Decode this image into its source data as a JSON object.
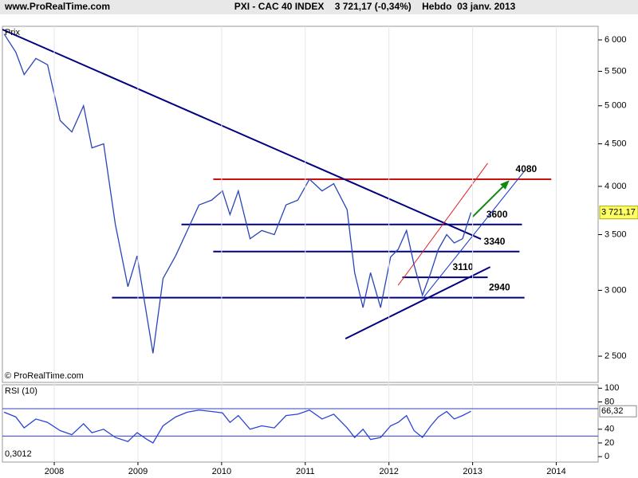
{
  "header": {
    "site": "www.ProRealTime.com",
    "title": "PXI - CAC 40 INDEX    3 721,17 (-0,34%)    Hebdo  03 janv. 2013"
  },
  "chart_data": [
    {
      "type": "line",
      "y_label": "Prix",
      "credit": "© ProRealTime.com",
      "log_scale": true,
      "xlim": [
        2007.38,
        2014.5
      ],
      "ylim": [
        2325,
        6230
      ],
      "yticks": [
        {
          "value": 2500,
          "label": "2 500"
        },
        {
          "value": 3000,
          "label": "3 000"
        },
        {
          "value": 3500,
          "label": "3 500"
        },
        {
          "value": 4000,
          "label": "4 000"
        },
        {
          "value": 4500,
          "label": "4 500"
        },
        {
          "value": 5000,
          "label": "5 000"
        },
        {
          "value": 5500,
          "label": "5 500"
        },
        {
          "value": 6000,
          "label": "6 000"
        }
      ],
      "x": [
        2007.4,
        2007.54,
        2007.64,
        2007.78,
        2007.92,
        2008.07,
        2008.21,
        2008.35,
        2008.45,
        2008.59,
        2008.73,
        2008.88,
        2008.99,
        2009.11,
        2009.18,
        2009.3,
        2009.45,
        2009.59,
        2009.73,
        2009.88,
        2010.01,
        2010.1,
        2010.2,
        2010.34,
        2010.48,
        2010.63,
        2010.77,
        2010.91,
        2011.05,
        2011.2,
        2011.34,
        2011.5,
        2011.59,
        2011.69,
        2011.78,
        2011.9,
        2012.02,
        2012.11,
        2012.21,
        2012.3,
        2012.4,
        2012.5,
        2012.59,
        2012.69,
        2012.78,
        2012.88,
        2012.98
      ],
      "values": [
        6100,
        5800,
        5450,
        5700,
        5600,
        4800,
        4650,
        5000,
        4450,
        4500,
        3600,
        3030,
        3300,
        2780,
        2520,
        3100,
        3300,
        3540,
        3800,
        3850,
        3950,
        3700,
        3950,
        3460,
        3540,
        3500,
        3800,
        3850,
        4080,
        3950,
        4030,
        3750,
        3150,
        2860,
        3150,
        2860,
        3290,
        3360,
        3540,
        3220,
        2960,
        3150,
        3360,
        3500,
        3420,
        3460,
        3721.17
      ],
      "color": "#2a44b8",
      "last": {
        "value": 3721.17,
        "label": "3 721,17"
      },
      "levels": [
        {
          "value": 4080,
          "color": "#cc1111",
          "x": [
            2009.9,
            2013.94
          ]
        },
        {
          "value": 3600,
          "color": "#000080",
          "x": [
            2009.52,
            2013.59
          ]
        },
        {
          "value": 3340,
          "color": "#000080",
          "x": [
            2009.9,
            2013.56
          ]
        },
        {
          "value": 3110,
          "color": "#000080",
          "x": [
            2012.16,
            2013.18
          ]
        },
        {
          "value": 2940,
          "color": "#000080",
          "x": [
            2008.69,
            2013.62
          ]
        }
      ],
      "trendlines": [
        {
          "x": [
            2007.38,
            2013.1
          ],
          "y": [
            6175,
            3457
          ],
          "color": "#000080",
          "width": 2
        },
        {
          "x": [
            2011.48,
            2013.21
          ],
          "y": [
            2624,
            3200
          ],
          "color": "#000080",
          "width": 2
        },
        {
          "x": [
            2012.4,
            2013.61
          ],
          "y": [
            2930,
            4162
          ],
          "color": "#1030d0",
          "width": 1
        },
        {
          "x": [
            2012.11,
            2013.18
          ],
          "y": [
            3042,
            4264
          ],
          "color": "#e02020",
          "width": 1
        }
      ],
      "arrow": {
        "x": [
          2013.0,
          2013.42
        ],
        "y": [
          3677,
          4050
        ],
        "color": "#118811"
      }
    },
    {
      "type": "line",
      "title": "RSI (10)",
      "footnote": "0,3012",
      "xlim": [
        2007.38,
        2014.5
      ],
      "ylim": [
        -8,
        105
      ],
      "xticks": [
        2008,
        2009,
        2010,
        2011,
        2012,
        2013,
        2014
      ],
      "yticks": [
        0,
        20,
        40,
        80,
        100
      ],
      "levels": [
        70,
        30
      ],
      "x": [
        2007.4,
        2007.54,
        2007.64,
        2007.78,
        2007.92,
        2008.07,
        2008.21,
        2008.35,
        2008.45,
        2008.59,
        2008.73,
        2008.88,
        2008.99,
        2009.11,
        2009.18,
        2009.3,
        2009.45,
        2009.59,
        2009.73,
        2009.88,
        2010.01,
        2010.1,
        2010.2,
        2010.34,
        2010.48,
        2010.63,
        2010.77,
        2010.91,
        2011.05,
        2011.2,
        2011.34,
        2011.5,
        2011.59,
        2011.69,
        2011.78,
        2011.9,
        2012.02,
        2012.11,
        2012.21,
        2012.3,
        2012.4,
        2012.5,
        2012.59,
        2012.69,
        2012.78,
        2012.88,
        2012.98
      ],
      "values": [
        65,
        58,
        42,
        55,
        50,
        38,
        32,
        48,
        35,
        40,
        28,
        22,
        35,
        25,
        20,
        45,
        58,
        65,
        68,
        66,
        64,
        50,
        60,
        40,
        45,
        42,
        60,
        62,
        68,
        55,
        62,
        42,
        28,
        40,
        25,
        28,
        45,
        50,
        60,
        38,
        28,
        45,
        58,
        66,
        55,
        60,
        66.32
      ],
      "value_labels": {
        "46": "66,32"
      },
      "color": "#2a44d8"
    }
  ]
}
